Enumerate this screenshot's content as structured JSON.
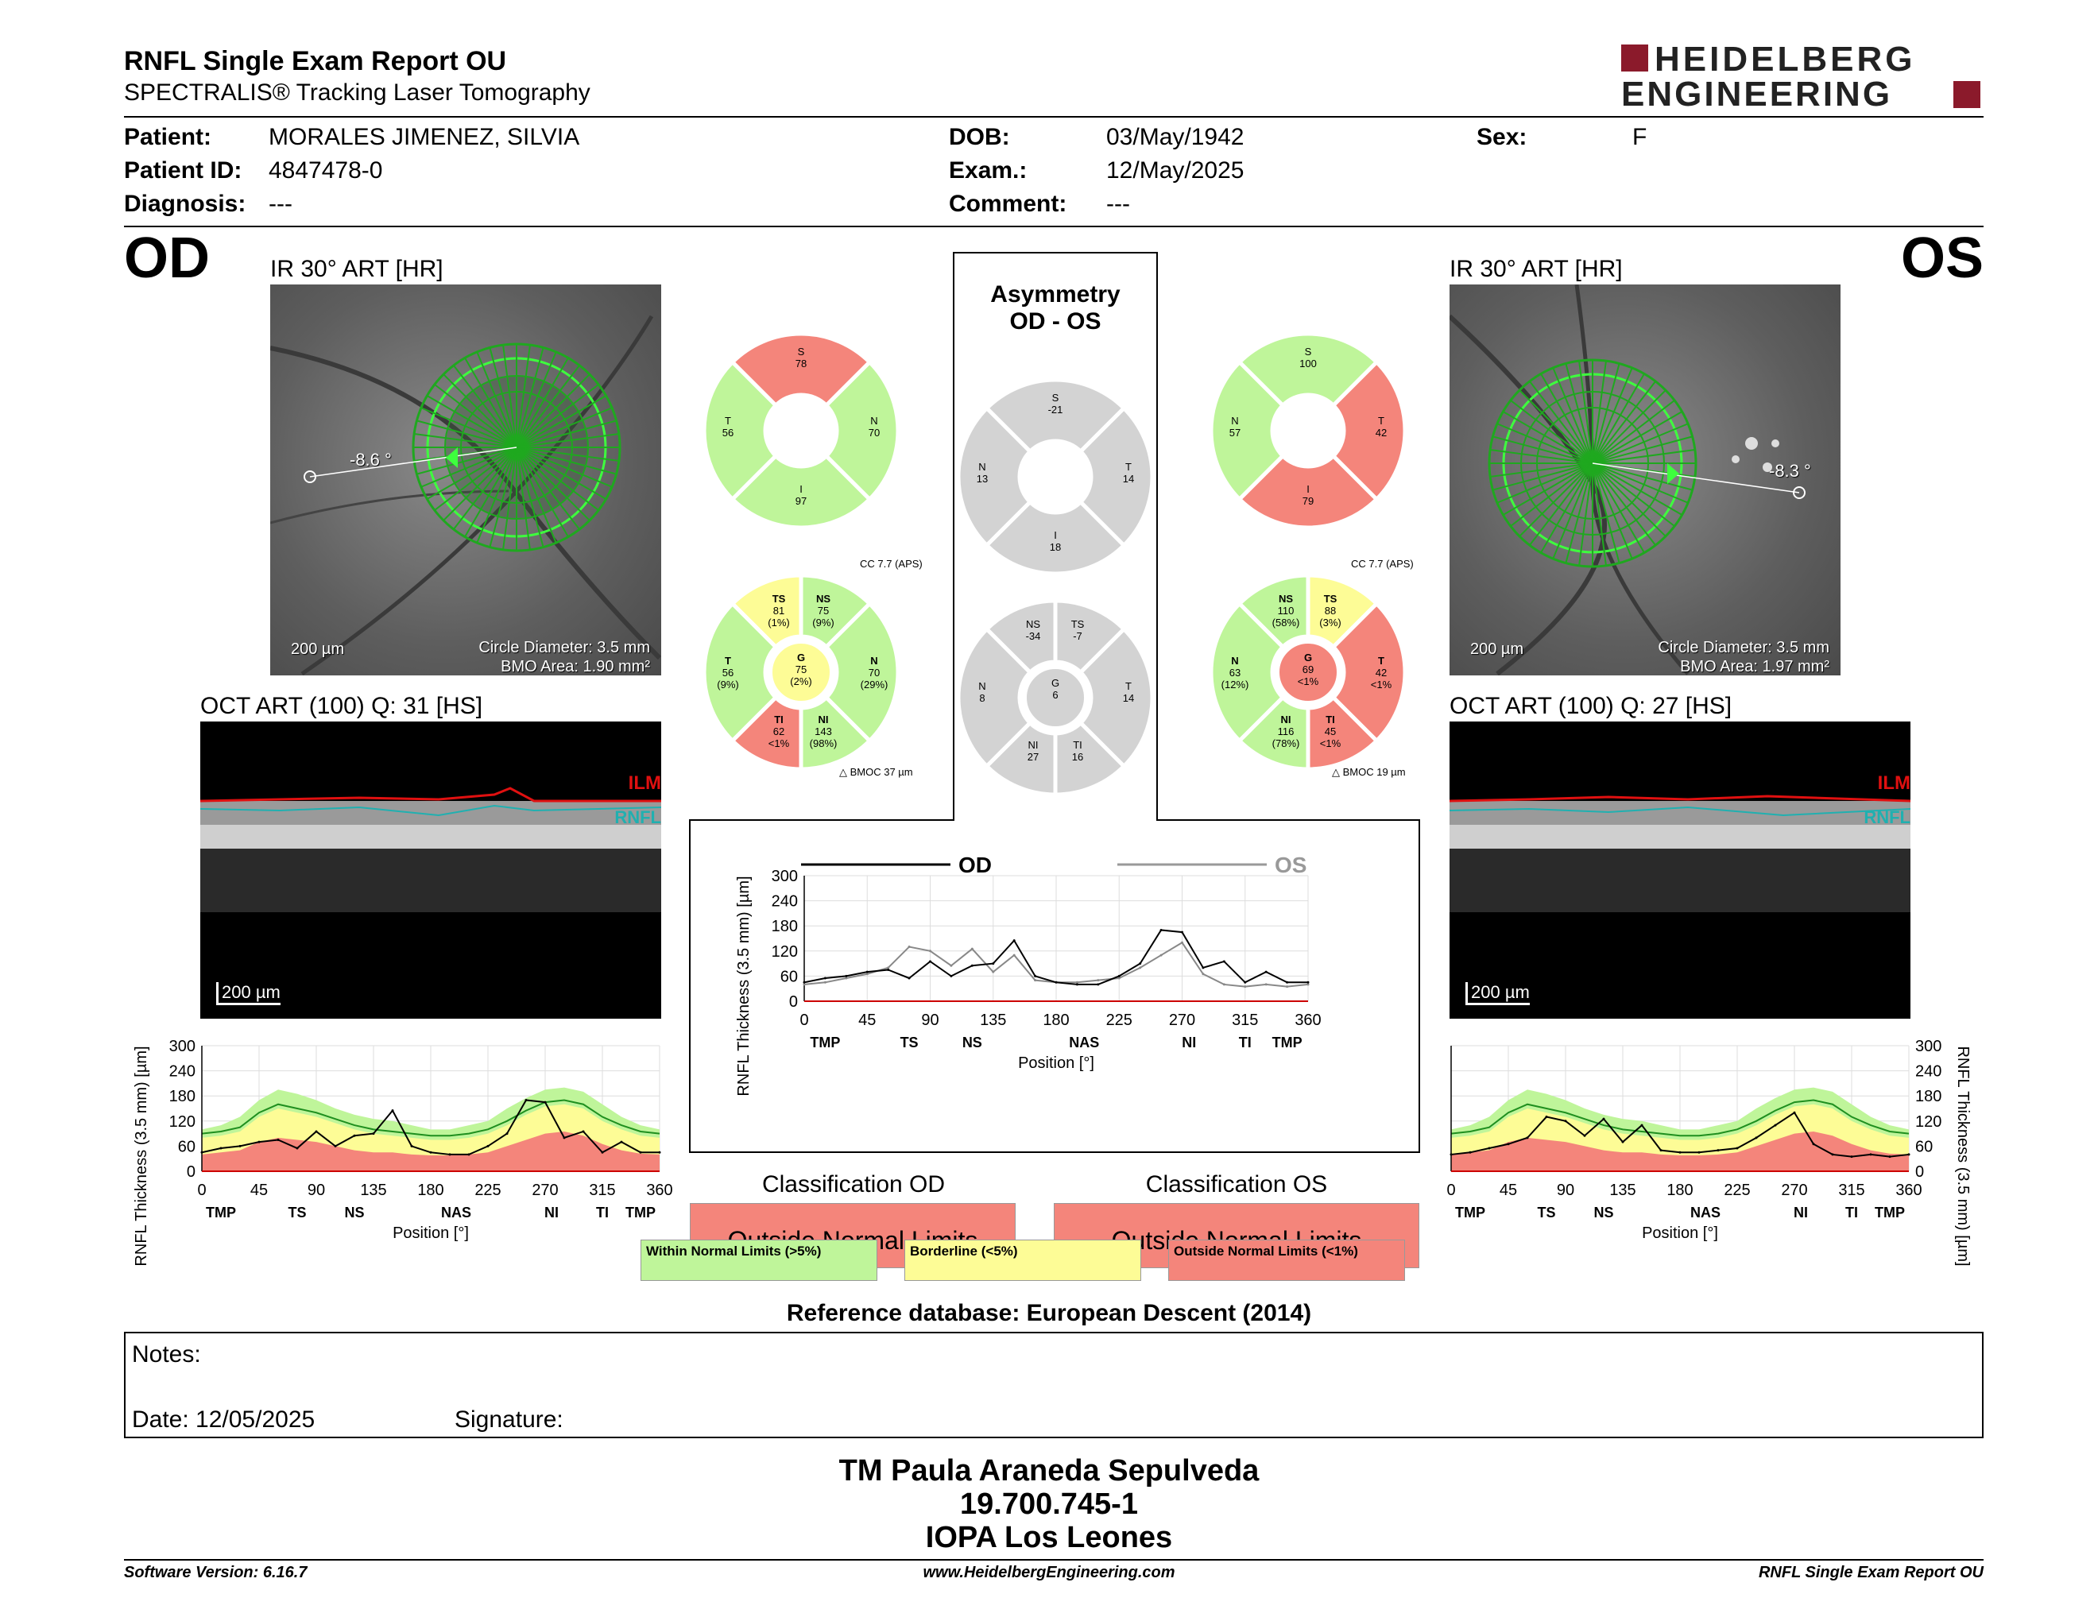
{
  "header": {
    "title": "RNFL Single Exam Report OU",
    "subtitle": "SPECTRALIS® Tracking Laser Tomography",
    "brand_line1": "HEIDELBERG",
    "brand_line2": "ENGINEERING",
    "brand_color": "#8b1a2b"
  },
  "patient": {
    "patient_label": "Patient:",
    "patient_value": "MORALES JIMENEZ, SILVIA",
    "id_label": "Patient ID:",
    "id_value": "4847478-0",
    "diagnosis_label": "Diagnosis:",
    "diagnosis_value": "---",
    "dob_label": "DOB:",
    "dob_value": "03/May/1942",
    "exam_label": "Exam.:",
    "exam_value": "12/May/2025",
    "comment_label": "Comment:",
    "comment_value": "---",
    "sex_label": "Sex:",
    "sex_value": "F"
  },
  "od": {
    "eye": "OD",
    "ir_title": "IR 30° ART [HR]",
    "angle": "-8.6 °",
    "scale": "200 µm",
    "circle_diameter": "Circle Diameter: 3.5 mm",
    "bmo_area": "BMO Area: 1.90 mm²",
    "oct_title": "OCT ART (100) Q: 31 [HS]",
    "oct_scale": "200 µm",
    "ilm": "ILM",
    "rnfl": "RNFL",
    "classification_title": "Classification OD",
    "classification_value": "Outside Normal Limits",
    "cc": "CC 7.7 (APS)",
    "bmoc": "BMOC 37 µm"
  },
  "os": {
    "eye": "OS",
    "ir_title": "IR 30° ART [HR]",
    "angle": "-8.3 °",
    "scale": "200 µm",
    "circle_diameter": "Circle Diameter: 3.5 mm",
    "bmo_area": "BMO Area: 1.97 mm²",
    "oct_title": "OCT ART (100) Q: 27 [HS]",
    "oct_scale": "200 µm",
    "ilm": "ILM",
    "rnfl": "RNFL",
    "classification_title": "Classification OS",
    "classification_value": "Outside Normal Limits",
    "cc": "CC 7.7 (APS)",
    "bmoc": "BMOC 19 µm"
  },
  "asymmetry": {
    "title_line1": "Asymmetry",
    "title_line2": "OD - OS"
  },
  "sectors": {
    "od_4": {
      "S": "78",
      "T": "56",
      "N": "70",
      "I": "97"
    },
    "os_4": {
      "S": "100",
      "N": "57",
      "T": "42",
      "I": "79"
    },
    "asym_4": {
      "S": "-21",
      "N": "13",
      "T": "14",
      "I": "18"
    },
    "od_6": {
      "TS": [
        "81",
        "(1%)"
      ],
      "NS": [
        "75",
        "(9%)"
      ],
      "T": [
        "56",
        "(9%)"
      ],
      "G": [
        "75",
        "(2%)"
      ],
      "N": [
        "70",
        "(29%)"
      ],
      "TI": [
        "62",
        "<1%"
      ],
      "NI": [
        "143",
        "(98%)"
      ]
    },
    "os_6": {
      "NS": [
        "110",
        "(58%)"
      ],
      "TS": [
        "88",
        "(3%)"
      ],
      "N": [
        "63",
        "(12%)"
      ],
      "G": [
        "69",
        "<1%"
      ],
      "T": [
        "42",
        "<1%"
      ],
      "NI": [
        "116",
        "(78%)"
      ],
      "TI": [
        "45",
        "<1%"
      ]
    },
    "asym_6": {
      "NS": "-34",
      "TS": "-7",
      "N": "8",
      "G": "6",
      "T": "14",
      "NI": "27",
      "TI": "16"
    }
  },
  "legend": {
    "within": "Within Normal Limits (>5%)",
    "borderline": "Borderline (<5%)",
    "outside": "Outside Normal Limits (<1%)",
    "reference": "Reference database: European Descent (2014)"
  },
  "colors": {
    "normal": "#bff59a",
    "borderline": "#fdfc96",
    "outside": "#f4857b",
    "gray": "#d3d3d3"
  },
  "chart_common": {
    "ylabel": "RNFL Thickness (3.5 mm) [µm]",
    "xlabel": "Position [°]",
    "yticks": [
      "0",
      "60",
      "120",
      "180",
      "240",
      "300"
    ],
    "xticks": [
      "0",
      "45",
      "90",
      "135",
      "180",
      "225",
      "270",
      "315",
      "360"
    ],
    "sector_labels_od": [
      "TMP",
      "TS",
      "NS",
      "NAS",
      "NI",
      "TI",
      "TMP"
    ],
    "sector_labels_os": [
      "TMP",
      "TS",
      "NS",
      "NAS",
      "NI",
      "TI",
      "TMP"
    ],
    "legend_od": "OD",
    "legend_os": "OS"
  },
  "chart_data": [
    {
      "type": "line",
      "name": "od_profile",
      "xlabel": "Position [°]",
      "ylabel": "RNFL Thickness (3.5 mm) [µm]",
      "xlim": [
        0,
        360
      ],
      "ylim": [
        0,
        300
      ],
      "x": [
        0,
        15,
        30,
        45,
        60,
        75,
        90,
        105,
        120,
        135,
        150,
        165,
        180,
        195,
        210,
        225,
        240,
        255,
        270,
        285,
        300,
        315,
        330,
        345,
        360
      ],
      "series": [
        {
          "values": [
            45,
            55,
            60,
            70,
            75,
            55,
            95,
            60,
            85,
            90,
            145,
            60,
            45,
            40,
            40,
            60,
            90,
            170,
            165,
            80,
            95,
            45,
            70,
            45,
            45
          ]
        }
      ]
    },
    {
      "type": "line",
      "name": "comparison",
      "xlabel": "Position [°]",
      "ylabel": "RNFL Thickness (3.5 mm) [µm]",
      "xlim": [
        0,
        360
      ],
      "ylim": [
        0,
        300
      ],
      "x": [
        0,
        15,
        30,
        45,
        60,
        75,
        90,
        105,
        120,
        135,
        150,
        165,
        180,
        195,
        210,
        225,
        240,
        255,
        270,
        285,
        300,
        315,
        330,
        345,
        360
      ],
      "series": [
        {
          "name": "OD",
          "values": [
            45,
            55,
            60,
            70,
            75,
            55,
            95,
            60,
            85,
            90,
            145,
            60,
            45,
            40,
            40,
            60,
            90,
            170,
            165,
            80,
            95,
            45,
            70,
            45,
            45
          ]
        },
        {
          "name": "OS",
          "values": [
            40,
            45,
            55,
            65,
            80,
            130,
            120,
            85,
            125,
            70,
            110,
            50,
            45,
            45,
            50,
            55,
            80,
            110,
            140,
            65,
            40,
            35,
            40,
            35,
            40
          ]
        }
      ]
    },
    {
      "type": "line",
      "name": "os_profile",
      "xlabel": "Position [°]",
      "ylabel": "RNFL Thickness (3.5 mm) [µm]",
      "xlim": [
        0,
        360
      ],
      "ylim": [
        0,
        300
      ],
      "x": [
        0,
        15,
        30,
        45,
        60,
        75,
        90,
        105,
        120,
        135,
        150,
        165,
        180,
        195,
        210,
        225,
        240,
        255,
        270,
        285,
        300,
        315,
        330,
        345,
        360
      ],
      "series": [
        {
          "values": [
            40,
            45,
            55,
            65,
            80,
            130,
            120,
            85,
            125,
            70,
            110,
            50,
            45,
            45,
            50,
            55,
            80,
            110,
            140,
            65,
            40,
            35,
            40,
            35,
            40
          ]
        }
      ]
    }
  ],
  "notes": {
    "notes_label": "Notes:",
    "date_label": "Date: 12/05/2025",
    "signature_label": "Signature:"
  },
  "footer": {
    "line1": "TM Paula Araneda Sepulveda",
    "line2": "19.700.745-1",
    "line3": "IOPA Los Leones",
    "software": "Software Version: 6.16.7",
    "website": "www.HeidelbergEngineering.com",
    "report": "RNFL Single Exam Report OU"
  }
}
